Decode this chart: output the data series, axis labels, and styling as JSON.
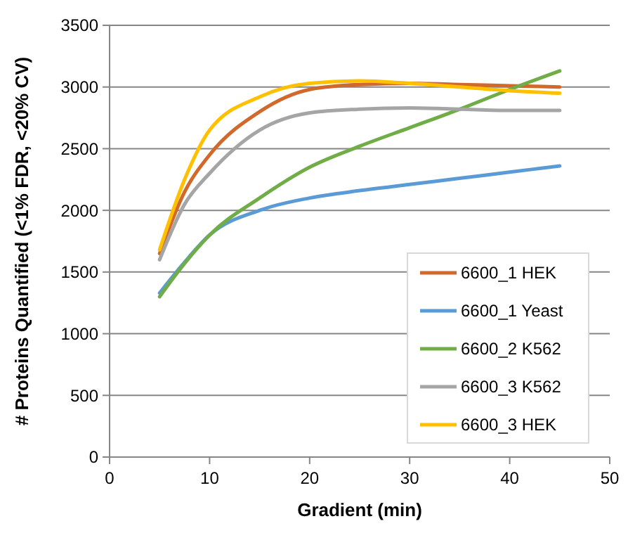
{
  "chart_data": {
    "type": "line",
    "xlabel": "Gradient (min)",
    "ylabel": "# Proteins Quantified (<1% FDR, <20% CV)",
    "x": [
      5,
      7.5,
      10,
      15,
      20,
      25,
      30,
      35,
      40,
      45
    ],
    "series": [
      {
        "name": "6600_1 HEK",
        "color": "#d0692b",
        "values": [
          1650,
          2150,
          2450,
          2800,
          2980,
          3020,
          3030,
          3020,
          3010,
          3000
        ]
      },
      {
        "name": "6600_1 Yeast",
        "color": "#5b9bd5",
        "values": [
          1330,
          1580,
          1800,
          2000,
          2100,
          2160,
          2210,
          2260,
          2310,
          2360
        ]
      },
      {
        "name": "6600_2 K562",
        "color": "#70ad47",
        "values": [
          1300,
          1570,
          1800,
          2100,
          2350,
          2520,
          2670,
          2820,
          2980,
          3130
        ]
      },
      {
        "name": "6600_3 K562",
        "color": "#a5a5a5",
        "values": [
          1600,
          2050,
          2300,
          2650,
          2790,
          2820,
          2830,
          2820,
          2810,
          2810
        ]
      },
      {
        "name": "6600_3 HEK",
        "color": "#ffc000",
        "values": [
          1680,
          2250,
          2650,
          2920,
          3030,
          3050,
          3030,
          3000,
          2970,
          2950
        ]
      }
    ],
    "xlim": [
      0,
      50
    ],
    "xticks": [
      0,
      10,
      20,
      30,
      40,
      50
    ],
    "ylim": [
      0,
      3500
    ],
    "yticks": [
      0,
      500,
      1000,
      1500,
      2000,
      2500,
      3000,
      3500
    ],
    "grid": "y",
    "legend": "bottom right",
    "marker": "none",
    "line_style": "solid"
  }
}
